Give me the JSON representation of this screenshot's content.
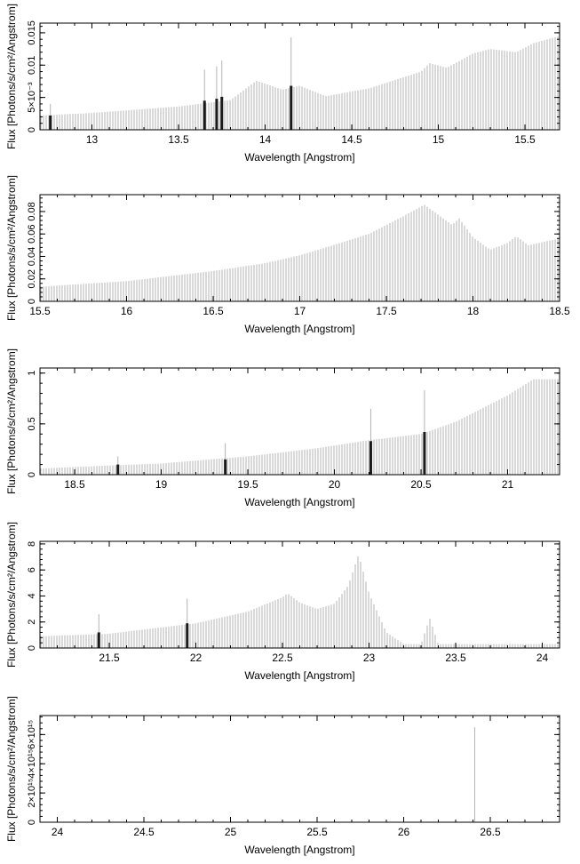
{
  "chart_data": [
    {
      "type": "bar",
      "xlabel": "Wavelength [Angstrom]",
      "ylabel": "Flux [Photons/s/cm²/Angstrom]",
      "xlim": [
        12.7,
        15.7
      ],
      "ylim": [
        0,
        0.0165
      ],
      "xticks": [
        "13",
        "13.5",
        "14",
        "14.5",
        "15",
        "15.5"
      ],
      "xtick_values": [
        13,
        13.5,
        14,
        14.5,
        15,
        15.5
      ],
      "yticks": [
        "0",
        "5×10⁻³",
        "0.01",
        "0.015"
      ],
      "ytick_values": [
        0,
        0.005,
        0.01,
        0.015
      ],
      "continuum": [
        [
          12.7,
          0.0022
        ],
        [
          13.0,
          0.0026
        ],
        [
          13.5,
          0.0036
        ],
        [
          13.8,
          0.0046
        ],
        [
          13.95,
          0.0076
        ],
        [
          14.1,
          0.0062
        ],
        [
          14.2,
          0.0068
        ],
        [
          14.35,
          0.0052
        ],
        [
          14.6,
          0.0064
        ],
        [
          14.9,
          0.009
        ],
        [
          14.95,
          0.0103
        ],
        [
          15.05,
          0.0096
        ],
        [
          15.2,
          0.0118
        ],
        [
          15.3,
          0.0125
        ],
        [
          15.45,
          0.012
        ],
        [
          15.55,
          0.0134
        ],
        [
          15.7,
          0.0145
        ]
      ],
      "highlighted_bars": [
        {
          "x": 12.76,
          "value": 0.0022,
          "error": 0.004
        },
        {
          "x": 13.65,
          "value": 0.0045,
          "error": 0.0093
        },
        {
          "x": 13.72,
          "value": 0.0048,
          "error": 0.0098
        },
        {
          "x": 13.75,
          "value": 0.0051,
          "error": 0.0107
        },
        {
          "x": 14.15,
          "value": 0.0068,
          "error": 0.0143
        }
      ]
    },
    {
      "type": "bar",
      "xlabel": "Wavelength [Angstrom]",
      "ylabel": "Flux [Photons/s/cm²/Angstrom]",
      "xlim": [
        15.5,
        18.5
      ],
      "ylim": [
        0,
        0.095
      ],
      "xticks": [
        "15.5",
        "16",
        "16.5",
        "17",
        "17.5",
        "18",
        "18.5"
      ],
      "xtick_values": [
        15.5,
        16,
        16.5,
        17,
        17.5,
        18,
        18.5
      ],
      "yticks": [
        "0",
        "0.02",
        "0.04",
        "0.06",
        "0.08"
      ],
      "ytick_values": [
        0,
        0.02,
        0.04,
        0.06,
        0.08
      ],
      "continuum": [
        [
          15.5,
          0.013
        ],
        [
          16.0,
          0.018
        ],
        [
          16.5,
          0.027
        ],
        [
          16.8,
          0.034
        ],
        [
          17.0,
          0.041
        ],
        [
          17.15,
          0.048
        ],
        [
          17.4,
          0.06
        ],
        [
          17.6,
          0.076
        ],
        [
          17.72,
          0.086
        ],
        [
          17.8,
          0.077
        ],
        [
          17.88,
          0.068
        ],
        [
          17.92,
          0.074
        ],
        [
          18.0,
          0.057
        ],
        [
          18.1,
          0.046
        ],
        [
          18.2,
          0.052
        ],
        [
          18.25,
          0.058
        ],
        [
          18.32,
          0.05
        ],
        [
          18.5,
          0.056
        ]
      ],
      "highlighted_bars": []
    },
    {
      "type": "bar",
      "xlabel": "Wavelength [Angstrom]",
      "ylabel": "Flux [Photons/s/cm²/Angstrom]",
      "xlim": [
        18.3,
        21.3
      ],
      "ylim": [
        0,
        1.05
      ],
      "xticks": [
        "18.5",
        "19",
        "19.5",
        "20",
        "20.5",
        "21"
      ],
      "xtick_values": [
        18.5,
        19,
        19.5,
        20,
        20.5,
        21
      ],
      "yticks": [
        "0",
        "0.5",
        "1"
      ],
      "ytick_values": [
        0,
        0.5,
        1
      ],
      "continuum": [
        [
          18.3,
          0.06
        ],
        [
          18.7,
          0.09
        ],
        [
          19.0,
          0.11
        ],
        [
          19.5,
          0.18
        ],
        [
          19.9,
          0.26
        ],
        [
          20.2,
          0.34
        ],
        [
          20.5,
          0.4
        ],
        [
          20.7,
          0.52
        ],
        [
          21.0,
          0.78
        ],
        [
          21.15,
          0.94
        ],
        [
          21.3,
          0.94
        ]
      ],
      "highlighted_bars": [
        {
          "x": 18.75,
          "value": 0.1,
          "error": 0.18
        },
        {
          "x": 19.37,
          "value": 0.15,
          "error": 0.31
        },
        {
          "x": 20.21,
          "value": 0.33,
          "error": 0.65
        },
        {
          "x": 20.52,
          "value": 0.42,
          "error": 0.83
        }
      ]
    },
    {
      "type": "bar",
      "xlabel": "Wavelength [Angstrom]",
      "ylabel": "Flux [Photons/s/cm²/Angstrom]",
      "xlim": [
        21.1,
        24.1
      ],
      "ylim": [
        0,
        8.2
      ],
      "xticks": [
        "21.5",
        "22",
        "22.5",
        "23",
        "23.5",
        "24"
      ],
      "xtick_values": [
        21.5,
        22,
        22.5,
        23,
        23.5,
        24
      ],
      "yticks": [
        "0",
        "2",
        "4",
        "6",
        "8"
      ],
      "ytick_values": [
        0,
        2,
        4,
        6,
        8
      ],
      "continuum": [
        [
          21.1,
          0.9
        ],
        [
          21.5,
          1.1
        ],
        [
          22.0,
          1.9
        ],
        [
          22.3,
          2.8
        ],
        [
          22.5,
          3.9
        ],
        [
          22.53,
          4.2
        ],
        [
          22.6,
          3.5
        ],
        [
          22.7,
          3.0
        ],
        [
          22.8,
          3.4
        ],
        [
          22.88,
          4.8
        ],
        [
          22.94,
          7.2
        ],
        [
          23.0,
          4.2
        ],
        [
          23.1,
          1.2
        ],
        [
          23.2,
          0.3
        ],
        [
          23.3,
          0.3
        ],
        [
          23.35,
          2.3
        ],
        [
          23.4,
          0.3
        ],
        [
          24.1,
          0.3
        ]
      ],
      "highlighted_bars": [
        {
          "x": 21.44,
          "value": 1.2,
          "error": 2.6
        },
        {
          "x": 21.95,
          "value": 1.9,
          "error": 3.8
        }
      ]
    },
    {
      "type": "bar",
      "xlabel": "Wavelength [Angstrom]",
      "ylabel": "Flux [Photons/s/cm²/Angstrom]",
      "xlim": [
        23.9,
        26.9
      ],
      "ylim": [
        0,
        7300000000000000.0
      ],
      "xticks": [
        "24",
        "24.5",
        "25",
        "25.5",
        "26",
        "26.5"
      ],
      "xtick_values": [
        24,
        24.5,
        25,
        25.5,
        26,
        26.5
      ],
      "yticks": [
        "0",
        "2×10¹⁵",
        "4×10¹⁵",
        "6×10¹⁵"
      ],
      "ytick_values": [
        0,
        2000000000000000.0,
        4000000000000000.0,
        6000000000000000.0
      ],
      "continuum": [],
      "spike": {
        "x": 26.41,
        "value": 6500000000000000.0
      },
      "highlighted_bars": []
    }
  ]
}
